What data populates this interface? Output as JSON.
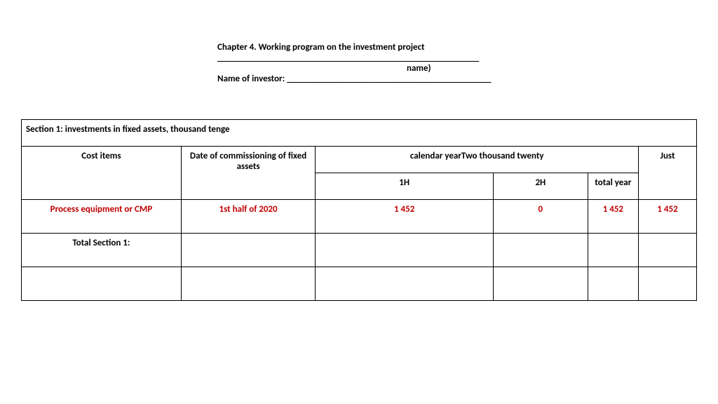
{
  "header": {
    "chapter_title": "Chapter 4. Working program on the investment project",
    "underline1": "____________________________________________________________________",
    "name_suffix": "name)",
    "investor_label": "Name of investor: ",
    "underline2": "_____________________________________________"
  },
  "table": {
    "section_title": "Section 1: investments in fixed assets, thousand tenge",
    "columns": {
      "cost_items": "Cost items",
      "commissioning": "Date of commissioning of fixed assets",
      "calendar_year": "calendar yearTwo thousand twenty",
      "just": "Just",
      "h1": "1H",
      "h2": "2H",
      "total_year": "total year"
    },
    "rows": [
      {
        "item": "Process equipment or CMP",
        "date": "1st half of 2020",
        "h1": "1 452",
        "h2": "0",
        "total_year": "1 452",
        "just": "1 452",
        "red": true
      },
      {
        "item": "Total Section 1:",
        "date": "",
        "h1": "",
        "h2": "",
        "total_year": "",
        "just": "",
        "red": false
      },
      {
        "item": "",
        "date": "",
        "h1": "",
        "h2": "",
        "total_year": "",
        "just": "",
        "red": false
      }
    ],
    "colors": {
      "text": "#000000",
      "red": "#c00000",
      "border": "#000000",
      "background": "#ffffff"
    }
  }
}
